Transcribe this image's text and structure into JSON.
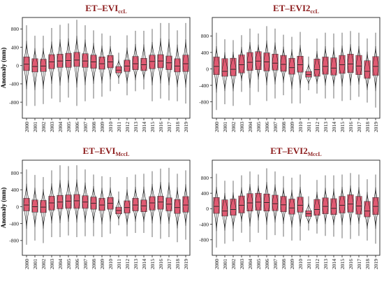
{
  "figure": {
    "colors": {
      "box": "#e05a72",
      "box_edge": "#3a3a3a",
      "violin": "#1c1c1c",
      "whisker": "#333333",
      "frame": "#222222",
      "title": "#8b1a1a"
    }
  },
  "chart_data": [
    {
      "type": "box",
      "title_main": "ET–EVI",
      "title_sub": "ccL",
      "ylabel": "Anomaly (mm)",
      "xlabel": "",
      "ylim": [
        -1150,
        1050
      ],
      "yticks": [
        -800,
        -400,
        0,
        400,
        800
      ],
      "ytick_labels": [
        "-800",
        "-400",
        "0",
        "400",
        "800"
      ],
      "grid": false,
      "categories": [
        "2000",
        "2001",
        "2002",
        "2003",
        "2004",
        "2005",
        "2006",
        "2007",
        "2008",
        "2009",
        "2010",
        "2011",
        "2012",
        "2013",
        "2014",
        "2015",
        "2016",
        "2017",
        "2018",
        "2019"
      ],
      "q1": [
        -110,
        -140,
        -130,
        -70,
        -40,
        -40,
        -20,
        -40,
        -60,
        -80,
        -50,
        -160,
        -130,
        -90,
        -110,
        -70,
        -50,
        -90,
        -140,
        -130
      ],
      "median": [
        30,
        -20,
        -10,
        80,
        100,
        110,
        120,
        100,
        80,
        40,
        80,
        -100,
        -10,
        40,
        20,
        90,
        100,
        60,
        -10,
        40
      ],
      "q3": [
        190,
        150,
        140,
        240,
        250,
        270,
        290,
        260,
        230,
        190,
        220,
        -20,
        120,
        200,
        160,
        230,
        240,
        210,
        150,
        230
      ],
      "min": [
        -880,
        -880,
        -840,
        -720,
        -800,
        -700,
        -880,
        -780,
        -720,
        -680,
        -560,
        -400,
        -650,
        -560,
        -520,
        -780,
        -720,
        -760,
        -780,
        -830
      ],
      "max": [
        880,
        650,
        650,
        820,
        890,
        920,
        1000,
        880,
        770,
        700,
        650,
        280,
        660,
        760,
        760,
        800,
        930,
        930,
        770,
        930
      ]
    },
    {
      "type": "box",
      "title_main": "ET–EVI2",
      "title_sub": "ccL",
      "ylabel": "",
      "xlabel": "",
      "ylim": [
        -1200,
        1250
      ],
      "yticks": [
        -800,
        -400,
        0,
        400,
        800
      ],
      "ytick_labels": [
        "-800",
        "-400",
        "0",
        "400",
        "800"
      ],
      "grid": false,
      "categories": [
        "2000",
        "2001",
        "2002",
        "2003",
        "2004",
        "2005",
        "2006",
        "2007",
        "2008",
        "2009",
        "2010",
        "2011",
        "2012",
        "2013",
        "2014",
        "2015",
        "2016",
        "2017",
        "2018",
        "2019"
      ],
      "q1": [
        -140,
        -180,
        -170,
        -100,
        -40,
        -20,
        -50,
        -30,
        -60,
        -130,
        -80,
        -200,
        -180,
        -130,
        -150,
        -110,
        -90,
        -140,
        -230,
        -160
      ],
      "median": [
        60,
        -60,
        -10,
        100,
        160,
        190,
        170,
        140,
        110,
        30,
        100,
        -140,
        -20,
        60,
        20,
        100,
        120,
        70,
        -60,
        60
      ],
      "q3": [
        290,
        250,
        260,
        340,
        400,
        420,
        390,
        360,
        330,
        260,
        310,
        -60,
        240,
        290,
        270,
        330,
        360,
        330,
        200,
        300
      ],
      "min": [
        -1000,
        -860,
        -900,
        -560,
        -880,
        -560,
        -780,
        -720,
        -640,
        -840,
        -840,
        -520,
        -600,
        -720,
        -720,
        -780,
        -760,
        -680,
        -820,
        -940
      ],
      "max": [
        880,
        720,
        700,
        820,
        980,
        860,
        1040,
        980,
        830,
        780,
        900,
        300,
        740,
        880,
        860,
        880,
        920,
        880,
        740,
        880
      ]
    },
    {
      "type": "box",
      "title_main": "ET–EVI",
      "title_sub": "MccL",
      "ylabel": "Anomaly (mm)",
      "xlabel": "",
      "ylim": [
        -1150,
        1100
      ],
      "yticks": [
        -800,
        -400,
        0,
        400,
        800
      ],
      "ytick_labels": [
        "-800",
        "-400",
        "0",
        "400",
        "800"
      ],
      "grid": false,
      "categories": [
        "2000",
        "2001",
        "2002",
        "2003",
        "2004",
        "2005",
        "2006",
        "2007",
        "2008",
        "2009",
        "2010",
        "2011",
        "2012",
        "2013",
        "2014",
        "2015",
        "2016",
        "2017",
        "2018",
        "2019"
      ],
      "q1": [
        -100,
        -130,
        -140,
        -80,
        -50,
        -40,
        -40,
        -40,
        -60,
        -90,
        -60,
        -170,
        -150,
        -100,
        -120,
        -80,
        -60,
        -100,
        -160,
        -130
      ],
      "median": [
        40,
        0,
        -10,
        90,
        110,
        130,
        140,
        110,
        80,
        40,
        80,
        -90,
        -20,
        40,
        20,
        90,
        110,
        60,
        -20,
        40
      ],
      "q3": [
        200,
        160,
        150,
        250,
        270,
        280,
        290,
        260,
        230,
        200,
        220,
        -10,
        140,
        200,
        160,
        240,
        250,
        210,
        170,
        240
      ],
      "min": [
        -900,
        -800,
        -860,
        -720,
        -720,
        -680,
        -720,
        -700,
        -700,
        -720,
        -640,
        -440,
        -700,
        -620,
        -620,
        -720,
        -760,
        -720,
        -840,
        -780
      ],
      "max": [
        880,
        750,
        700,
        860,
        980,
        960,
        980,
        880,
        760,
        720,
        700,
        360,
        700,
        760,
        780,
        840,
        900,
        920,
        780,
        860
      ]
    },
    {
      "type": "box",
      "title_main": "ET–EVI2",
      "title_sub": "MccL",
      "ylabel": "",
      "xlabel": "",
      "ylim": [
        -1200,
        1250
      ],
      "yticks": [
        -800,
        -400,
        0,
        400,
        800
      ],
      "ytick_labels": [
        "-800",
        "-400",
        "0",
        "400",
        "800"
      ],
      "grid": false,
      "categories": [
        "2000",
        "2001",
        "2002",
        "2003",
        "2004",
        "2005",
        "2006",
        "2007",
        "2008",
        "2009",
        "2010",
        "2011",
        "2012",
        "2013",
        "2014",
        "2015",
        "2016",
        "2017",
        "2018",
        "2019"
      ],
      "q1": [
        -120,
        -190,
        -170,
        -110,
        -60,
        -40,
        -60,
        -50,
        -80,
        -140,
        -90,
        -200,
        -170,
        -130,
        -150,
        -110,
        -90,
        -140,
        -210,
        -150
      ],
      "median": [
        60,
        -60,
        -20,
        90,
        150,
        170,
        160,
        130,
        100,
        20,
        90,
        -130,
        -20,
        60,
        10,
        90,
        120,
        70,
        -60,
        60
      ],
      "q3": [
        290,
        230,
        250,
        330,
        390,
        400,
        380,
        350,
        320,
        250,
        300,
        -50,
        240,
        280,
        260,
        320,
        360,
        320,
        190,
        290
      ],
      "min": [
        -1000,
        -900,
        -840,
        -620,
        -860,
        -620,
        -800,
        -680,
        -720,
        -820,
        -820,
        -560,
        -640,
        -700,
        -720,
        -760,
        -780,
        -700,
        -820,
        -900
      ],
      "max": [
        900,
        720,
        720,
        860,
        960,
        880,
        1040,
        960,
        840,
        800,
        880,
        320,
        740,
        860,
        860,
        880,
        920,
        880,
        760,
        880
      ]
    }
  ]
}
